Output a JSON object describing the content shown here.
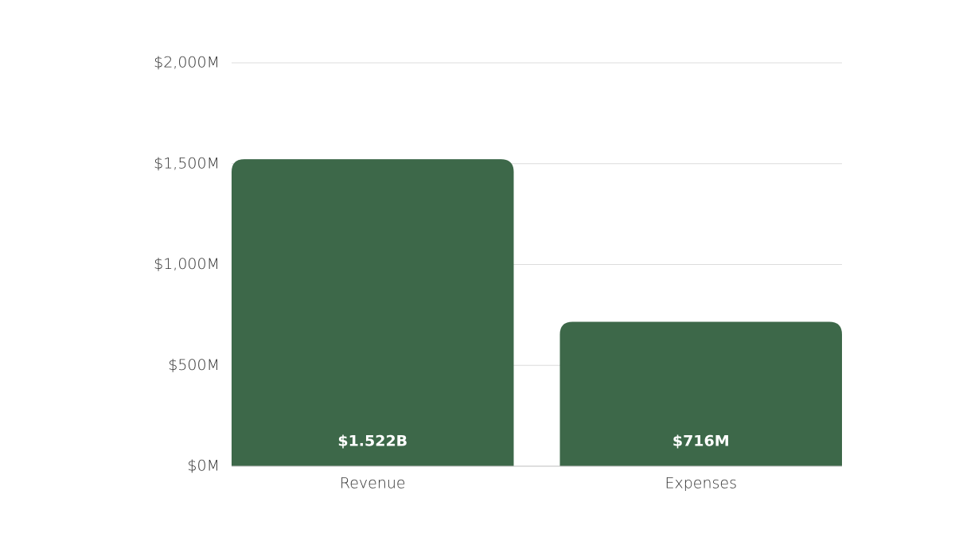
{
  "chart_data": {
    "type": "bar",
    "title": "",
    "xlabel": "",
    "ylabel": "",
    "categories": [
      "Revenue",
      "Expenses"
    ],
    "values": [
      1522,
      716
    ],
    "data_labels": [
      "$1.522B",
      "$716M"
    ],
    "ylim": [
      0,
      2000
    ],
    "y_ticks": [
      0,
      500,
      1000,
      1500,
      2000
    ],
    "y_tick_labels": [
      "$0M",
      "$500M",
      "$1,000M",
      "$1,500M",
      "$2,000M"
    ],
    "grid": true,
    "legend": "none",
    "bar_color": "#3d6849"
  }
}
